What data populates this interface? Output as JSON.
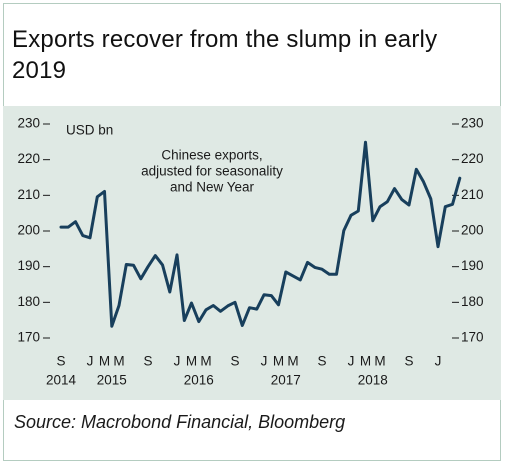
{
  "title": "Exports recover from the slump in early 2019",
  "source": "Source: Macrobond Financial, Bloomberg",
  "colors": {
    "line": "#183f5c",
    "panel": "#dfe9e4",
    "frame": "#b4ccc0"
  },
  "chart_data": {
    "type": "line",
    "title": "Exports recover from the slump in early 2019",
    "ylabel": "USD bn",
    "ylim": [
      170,
      230
    ],
    "yticks": [
      170,
      180,
      190,
      200,
      210,
      220,
      230
    ],
    "grid": false,
    "annotation": [
      "Chinese exports,",
      "adjusted for seasonality",
      "and New Year"
    ],
    "x_start": "2014-09",
    "x_ticks": [
      {
        "month": "2014-09",
        "label": "S"
      },
      {
        "month": "2015-01",
        "label": "J"
      },
      {
        "month": "2015-03",
        "label": "M"
      },
      {
        "month": "2015-05",
        "label": "M"
      },
      {
        "month": "2015-09",
        "label": "S"
      },
      {
        "month": "2016-01",
        "label": "J"
      },
      {
        "month": "2016-03",
        "label": "M"
      },
      {
        "month": "2016-05",
        "label": "M"
      },
      {
        "month": "2016-09",
        "label": "S"
      },
      {
        "month": "2017-01",
        "label": "J"
      },
      {
        "month": "2017-03",
        "label": "M"
      },
      {
        "month": "2017-05",
        "label": "M"
      },
      {
        "month": "2017-09",
        "label": "S"
      },
      {
        "month": "2018-01",
        "label": "J"
      },
      {
        "month": "2018-03",
        "label": "M"
      },
      {
        "month": "2018-05",
        "label": "M"
      },
      {
        "month": "2018-09",
        "label": "S"
      },
      {
        "month": "2019-01",
        "label": "J"
      }
    ],
    "year_labels": [
      {
        "month": "2014-09",
        "label": "2014"
      },
      {
        "month": "2015-04",
        "label": "2015"
      },
      {
        "month": "2016-04",
        "label": "2016"
      },
      {
        "month": "2017-04",
        "label": "2017"
      },
      {
        "month": "2018-04",
        "label": "2018"
      }
    ],
    "series": [
      {
        "name": "Chinese exports",
        "x": [
          "2014-09",
          "2014-10",
          "2014-11",
          "2014-12",
          "2015-01",
          "2015-02",
          "2015-03",
          "2015-04",
          "2015-05",
          "2015-06",
          "2015-07",
          "2015-08",
          "2015-09",
          "2015-10",
          "2015-11",
          "2015-12",
          "2016-01",
          "2016-02",
          "2016-03",
          "2016-04",
          "2016-05",
          "2016-06",
          "2016-07",
          "2016-08",
          "2016-09",
          "2016-10",
          "2016-11",
          "2016-12",
          "2017-01",
          "2017-02",
          "2017-03",
          "2017-04",
          "2017-05",
          "2017-06",
          "2017-07",
          "2017-08",
          "2017-09",
          "2017-10",
          "2017-11",
          "2017-12",
          "2018-01",
          "2018-02",
          "2018-03",
          "2018-04",
          "2018-05",
          "2018-06",
          "2018-07",
          "2018-08",
          "2018-09",
          "2018-10",
          "2018-11",
          "2018-12",
          "2019-01",
          "2019-02",
          "2019-03",
          "2019-04"
        ],
        "values": [
          201.1,
          201.1,
          202.6,
          198.7,
          198.1,
          209.6,
          211.1,
          173.3,
          179.1,
          190.6,
          190.4,
          186.6,
          190.0,
          193.1,
          190.5,
          182.9,
          193.3,
          174.9,
          179.8,
          174.6,
          177.9,
          179.1,
          177.5,
          179.0,
          180.0,
          173.5,
          178.5,
          178.1,
          182.1,
          181.9,
          179.3,
          188.5,
          187.4,
          186.3,
          191.2,
          189.8,
          189.3,
          187.9,
          187.9,
          200.1,
          204.4,
          205.6,
          224.9,
          202.9,
          206.8,
          208.2,
          211.9,
          208.8,
          207.3,
          217.3,
          213.8,
          209.0,
          195.6,
          206.8,
          207.5,
          214.8
        ]
      }
    ]
  }
}
